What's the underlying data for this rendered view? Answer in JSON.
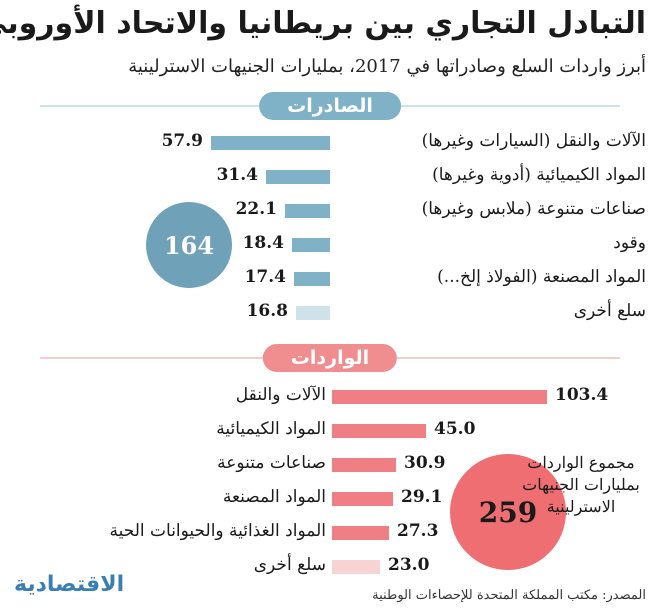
{
  "title": "التبادل التجاري بين بريطانيا والاتحاد الأوروبي",
  "subtitle": "أبرز واردات السلع وصادراتها في 2017، بمليارات الجنيهات الاسترلينية",
  "source": "المصدر: مكتب المملكة المتحدة للإحصاءات الوطنية",
  "logo": "الاقتصادية",
  "colors": {
    "exports_bar": "#7fb2c6",
    "exports_other_bar": "#cfe2ea",
    "imports_bar": "#ef7f82",
    "imports_other_bar": "#f8d3d4"
  },
  "chart_data": [
    {
      "type": "bar",
      "title": "الصادرات",
      "categories": [
        "الآلات والنقل (السيارات وغيرها)",
        "المواد الكيميائية (أدوية وغيرها)",
        "صناعات متنوعة (ملابس وغيرها)",
        "وقود",
        "المواد المصنعة (الفولاذ إلخ...)",
        "سلع أخرى"
      ],
      "values": [
        57.9,
        31.4,
        22.1,
        18.4,
        17.4,
        16.8
      ],
      "total": "164"
    },
    {
      "type": "bar",
      "title": "الواردات",
      "categories": [
        "الآلات والنقل",
        "المواد الكيميائية",
        "صناعات متنوعة",
        "المواد المصنعة",
        "المواد الغذائية والحيوانات الحية",
        "سلع أخرى"
      ],
      "values": [
        103.4,
        45.0,
        30.9,
        29.1,
        27.3,
        23.0
      ],
      "value_labels": [
        "103.4",
        "45.0",
        "30.9",
        "29.1",
        "27.3",
        "23.0"
      ],
      "total": "259",
      "total_label": "مجموع الواردات بمليارات الجنيهات الاسترلينية"
    }
  ]
}
